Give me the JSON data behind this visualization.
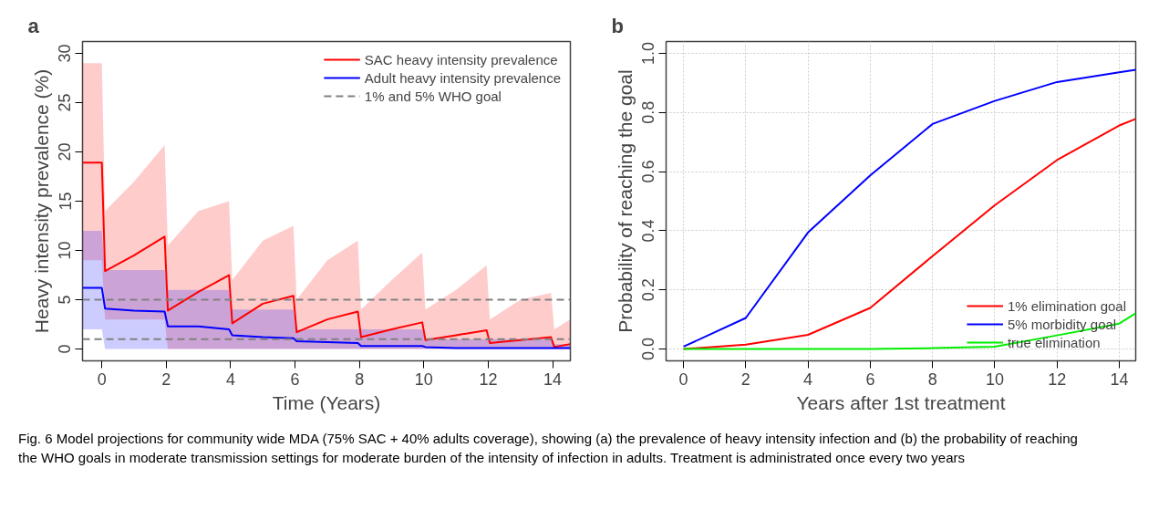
{
  "chart_data": [
    {
      "type": "line",
      "title": "a",
      "xlabel": "Time (Years)",
      "ylabel": "Heavy intensity prevalence (%)",
      "x": [
        -0.6,
        0,
        0.1,
        1,
        1.95,
        2.05,
        3,
        3.95,
        4.05,
        5,
        5.95,
        6.05,
        7,
        7.95,
        8.05,
        9,
        9.95,
        10.05,
        11,
        11.95,
        12.05,
        13,
        13.95,
        14.05,
        14.54
      ],
      "series": [
        {
          "name": "SAC heavy intensity prevalence",
          "color": "#ff0000",
          "values": [
            18.9,
            18.9,
            7.9,
            9.5,
            11.4,
            3.9,
            5.8,
            7.5,
            2.6,
            4.6,
            5.4,
            1.7,
            3.0,
            3.8,
            1.2,
            2.0,
            2.7,
            0.9,
            1.4,
            1.9,
            0.6,
            0.9,
            1.2,
            0.2,
            0.5
          ],
          "upper": [
            29,
            29,
            14,
            17,
            20.7,
            10.5,
            14,
            15,
            7,
            11,
            12.5,
            5,
            9,
            11,
            4,
            7,
            9.8,
            4,
            6,
            8.5,
            3,
            5,
            5.7,
            2,
            3
          ],
          "lower": [
            9,
            9,
            3,
            3,
            3,
            0,
            0,
            0,
            0,
            0,
            0,
            0,
            0,
            0,
            0,
            0,
            0,
            0,
            0,
            0,
            0,
            0,
            0,
            0,
            0
          ]
        },
        {
          "name": "Adult heavy intensity prevalence",
          "color": "#0000ff",
          "values": [
            6.2,
            6.2,
            4.1,
            3.9,
            3.8,
            2.3,
            2.3,
            2.0,
            1.4,
            1.2,
            1.1,
            0.8,
            0.7,
            0.6,
            0.3,
            0.3,
            0.3,
            0.2,
            0.1,
            0.1,
            0.1,
            0.1,
            0.1,
            0.1,
            0.1
          ],
          "upper": [
            12,
            12,
            8,
            8,
            8,
            6,
            6,
            6,
            4,
            4,
            4,
            2,
            2,
            2,
            2,
            2,
            2,
            1,
            1,
            1,
            1,
            1,
            1,
            0.5,
            0.5
          ],
          "lower": [
            2,
            2,
            0,
            0,
            0,
            0,
            0,
            0,
            0,
            0,
            0,
            0,
            0,
            0,
            0,
            0,
            0,
            0,
            0,
            0,
            0,
            0,
            0,
            0,
            0
          ]
        }
      ],
      "ref_lines": [
        {
          "axis": "y",
          "value": 1,
          "label": "1% and 5% WHO goal",
          "color": "#808080",
          "line_style": "dashed"
        },
        {
          "axis": "y",
          "value": 5,
          "color": "#808080",
          "line_style": "dashed"
        }
      ],
      "xlim": [
        -0.6,
        14.55
      ],
      "ylim": [
        -1.2,
        31.2
      ],
      "xticks": [
        0,
        2,
        4,
        6,
        8,
        10,
        12,
        14
      ],
      "yticks": [
        0,
        5,
        10,
        15,
        20,
        25,
        30
      ],
      "grid": false,
      "legend": "top right",
      "line_style": "solid",
      "annotations": [
        "Fig. 6  Model projections for community wide MDA (75% SAC + 40% adults coverage), showing (a) the prevalence of heavy intensity infection and (b) the probability of reaching the WHO goals in moderate transmission settings for moderate burden of the intensity of infection in adults. Treatment is administrated once every two years"
      ]
    },
    {
      "type": "line",
      "title": "b",
      "xlabel": "Years after 1st treatment",
      "ylabel": "Probability of reaching the goal",
      "x": [
        0,
        2,
        4,
        6,
        8,
        10,
        12,
        14,
        14.53
      ],
      "series": [
        {
          "name": "1% elimination goal",
          "color": "#ff0000",
          "values": [
            0,
            0.015,
            0.048,
            0.139,
            0.314,
            0.486,
            0.639,
            0.756,
            0.778
          ]
        },
        {
          "name": "5% morbidity goal",
          "color": "#0000ff",
          "values": [
            0.008,
            0.105,
            0.394,
            0.587,
            0.761,
            0.839,
            0.903,
            0.936,
            0.944
          ]
        },
        {
          "name": "true elimination",
          "color": "#00ee00",
          "values": [
            0,
            0,
            0,
            0,
            0.003,
            0.008,
            0.046,
            0.086,
            0.121
          ]
        }
      ],
      "xlim": [
        -0.56,
        14.53
      ],
      "ylim": [
        -0.04,
        1.04
      ],
      "xticks": [
        0,
        2,
        4,
        6,
        8,
        10,
        12,
        14
      ],
      "yticks": [
        {
          "value": 0,
          "label": "0.0"
        },
        {
          "value": 0.2,
          "label": "0.2"
        },
        {
          "value": 0.4,
          "label": "0.4"
        },
        {
          "value": 0.6,
          "label": "0.6"
        },
        {
          "value": 0.8,
          "label": "0.8"
        },
        {
          "value": 1,
          "label": "1.0"
        }
      ],
      "grid": true,
      "legend": "bottom right",
      "line_style": "solid"
    }
  ]
}
